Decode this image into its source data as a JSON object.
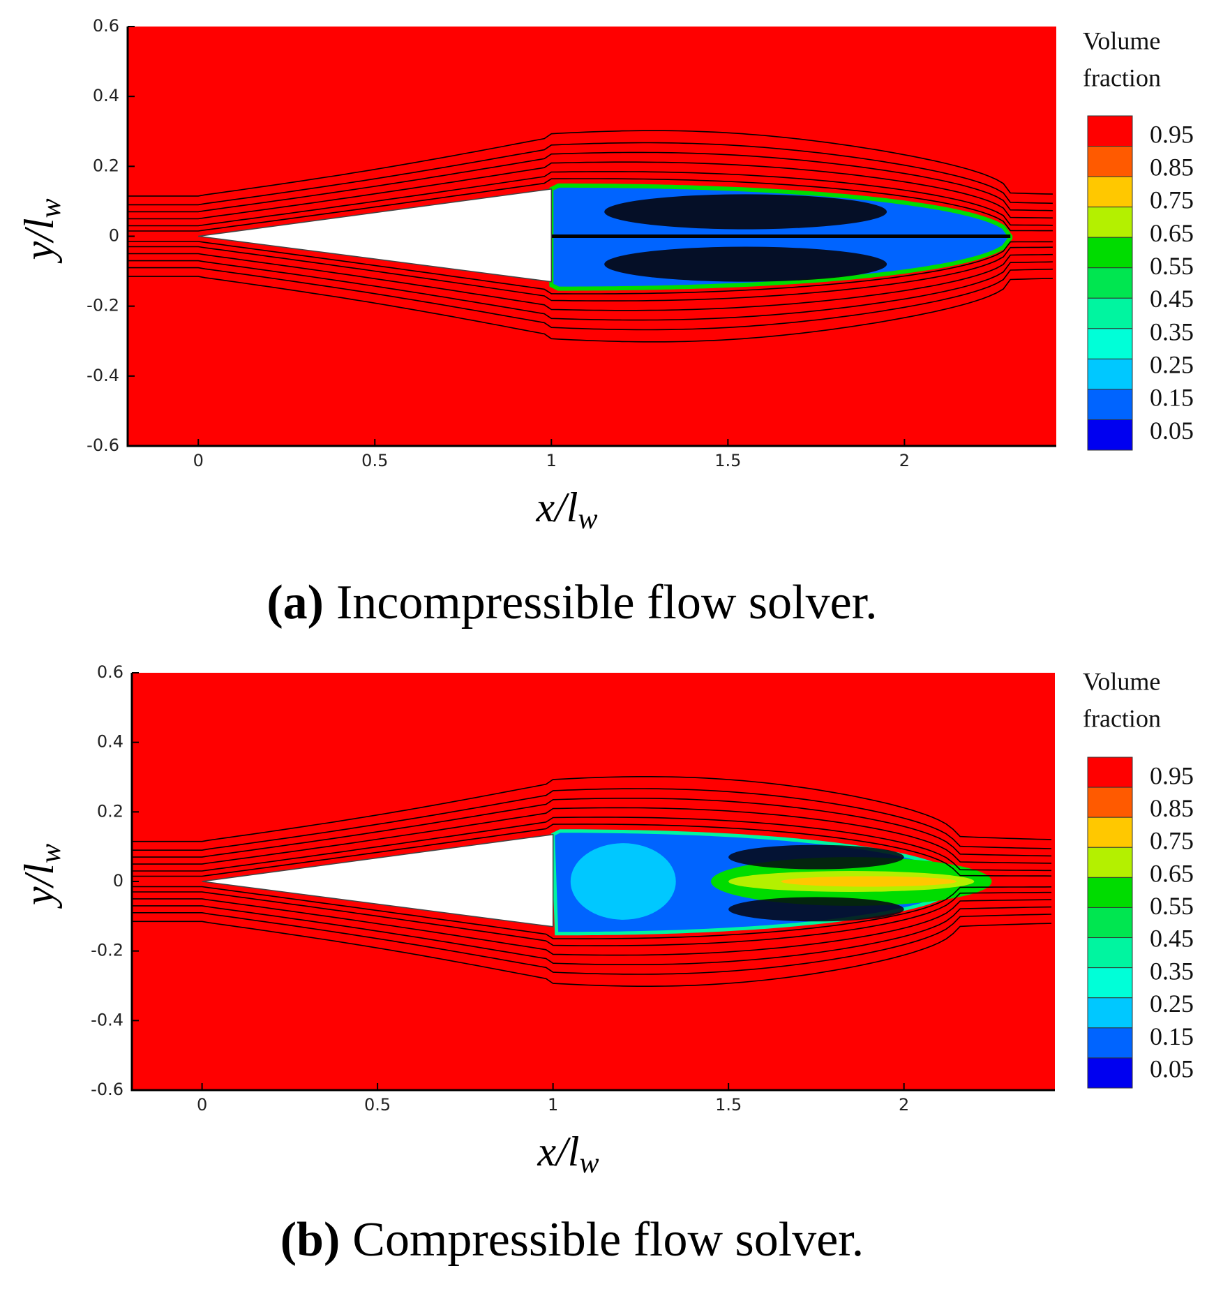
{
  "chart_data": [
    {
      "type": "contour",
      "xlabel": "x/l",
      "xlabel_sub": "w",
      "ylabel": "y/l",
      "ylabel_sub": "w",
      "xlim": [
        -0.2,
        2.43
      ],
      "ylim": [
        -0.6,
        0.6
      ],
      "xticks": [
        0,
        0.5,
        1,
        1.5,
        2
      ],
      "yticks": [
        -0.6,
        -0.4,
        -0.2,
        0,
        0.2,
        0.4,
        0.6
      ],
      "colorbar": {
        "title_lines": [
          "Volume",
          "fraction"
        ],
        "levels": [
          0.95,
          0.85,
          0.75,
          0.65,
          0.55,
          0.45,
          0.35,
          0.25,
          0.15,
          0.05
        ],
        "colors": [
          "#ff0000",
          "#ff5a00",
          "#ffc800",
          "#b4f000",
          "#00dc00",
          "#00e650",
          "#00f5a0",
          "#00ffd8",
          "#00c8ff",
          "#0064ff",
          "#0000f0"
        ]
      },
      "caption_label": "(a)",
      "caption": "Incompressible flow solver."
    },
    {
      "type": "contour",
      "xlabel": "x/l",
      "xlabel_sub": "w",
      "ylabel": "y/l",
      "ylabel_sub": "w",
      "xlim": [
        -0.2,
        2.43
      ],
      "ylim": [
        -0.6,
        0.6
      ],
      "xticks": [
        0,
        0.5,
        1,
        1.5,
        2
      ],
      "yticks": [
        -0.6,
        -0.4,
        -0.2,
        0,
        0.2,
        0.4,
        0.6
      ],
      "colorbar": {
        "title_lines": [
          "Volume",
          "fraction"
        ],
        "levels": [
          0.95,
          0.85,
          0.75,
          0.65,
          0.55,
          0.45,
          0.35,
          0.25,
          0.15,
          0.05
        ],
        "colors": [
          "#ff0000",
          "#ff5a00",
          "#ffc800",
          "#b4f000",
          "#00dc00",
          "#00e650",
          "#00f5a0",
          "#00ffd8",
          "#00c8ff",
          "#0064ff",
          "#0000f0"
        ]
      },
      "caption_label": "(b)",
      "caption": "Compressible flow solver."
    }
  ]
}
